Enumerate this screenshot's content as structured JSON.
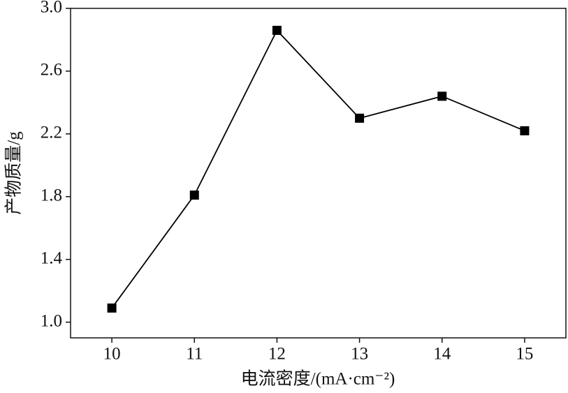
{
  "chart_data": {
    "type": "line",
    "x_label": "电流密度/(mA·cm⁻²)",
    "y_label": "产物质量/g",
    "x": [
      10,
      11,
      12,
      13,
      14,
      15
    ],
    "series": [
      {
        "color": "#000000",
        "values": [
          1.09,
          1.81,
          2.86,
          2.3,
          2.44,
          2.22
        ]
      }
    ],
    "xlim": [
      9.5,
      15.5
    ],
    "xticks": [
      10,
      11,
      12,
      13,
      14,
      15
    ],
    "ylim": [
      0.9,
      3.0
    ],
    "yticks": [
      {
        "value": 1,
        "label": "1.0"
      },
      1.4,
      1.8,
      2.2,
      2.6,
      {
        "value": 3,
        "label": "3.0"
      }
    ],
    "grid": false
  }
}
